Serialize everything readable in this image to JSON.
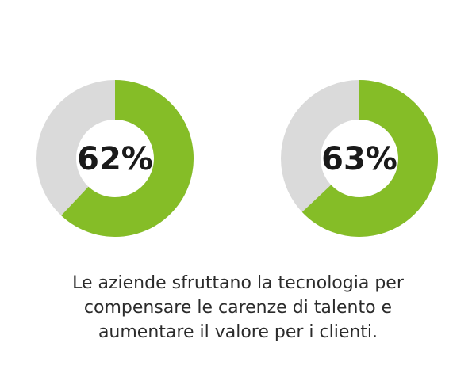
{
  "colors": {
    "accent": "#85bd27",
    "track": "#dadada",
    "text": "#1a1a1a"
  },
  "chart_data": [
    {
      "type": "pie",
      "variant": "donut",
      "values": [
        62,
        38
      ],
      "label": "62%"
    },
    {
      "type": "pie",
      "variant": "donut",
      "values": [
        63,
        37
      ],
      "label": "63%"
    }
  ],
  "caption": {
    "lines": [
      "Le aziende sfruttano la tecnologia per",
      "compensare le carenze di talento e",
      "aumentare il valore per i clienti."
    ]
  }
}
